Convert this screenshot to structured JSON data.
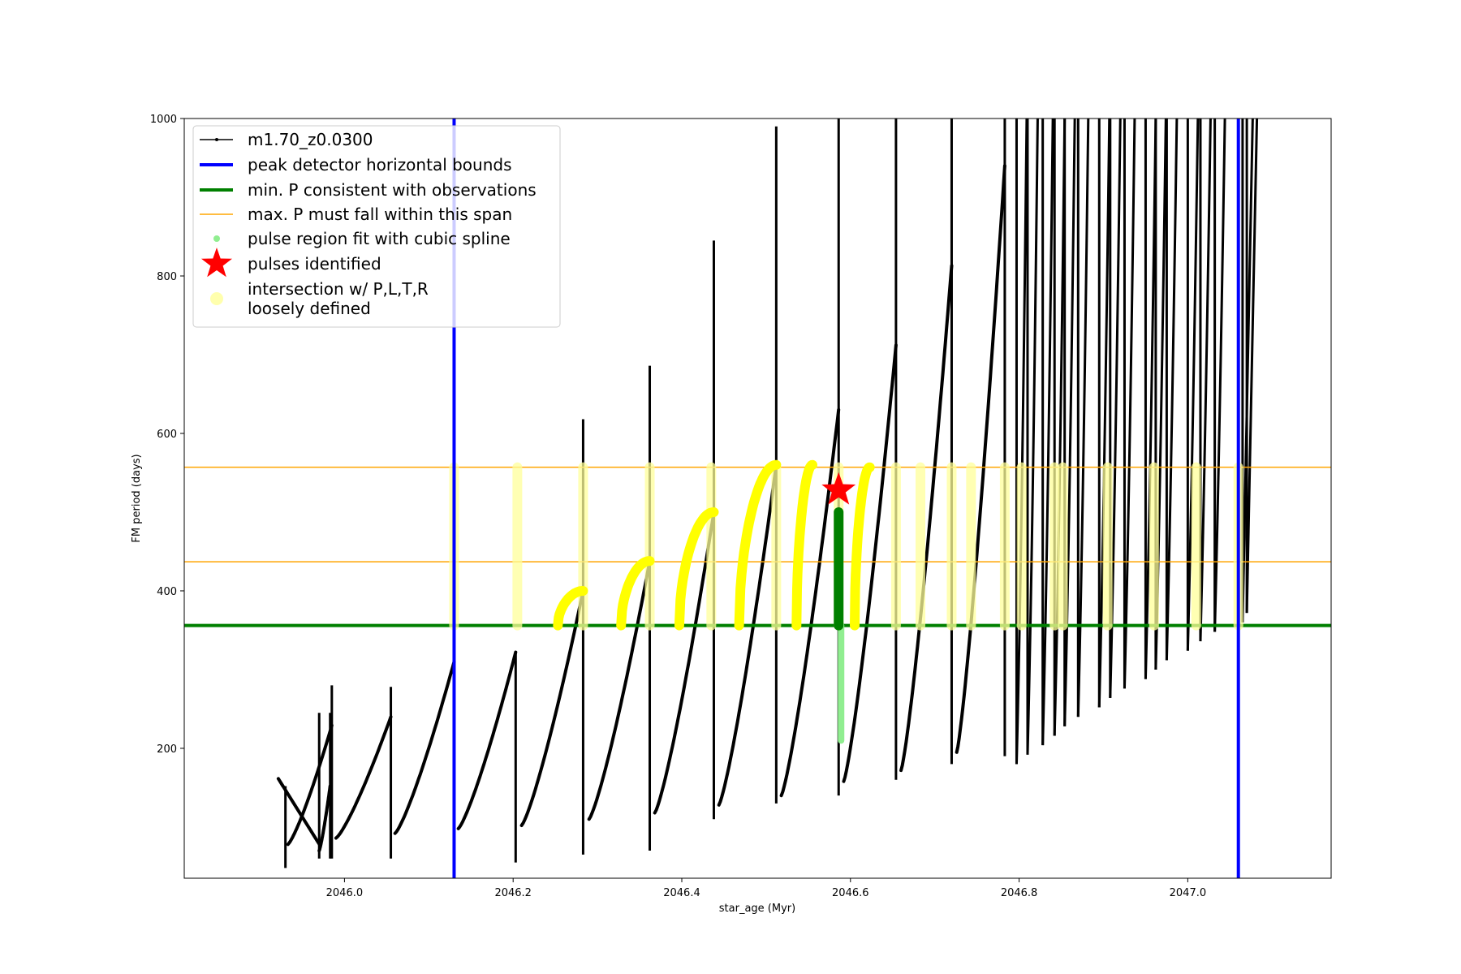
{
  "chart_data": {
    "type": "line",
    "xlabel": "star_age (Myr)",
    "ylabel": "FM period (days)",
    "xlim": [
      2045.81,
      2047.17
    ],
    "ylim": [
      35,
      1000
    ],
    "x_ticks": [
      2046.0,
      2046.2,
      2046.4,
      2046.6,
      2046.8,
      2047.0
    ],
    "x_tick_labels": [
      "2046.0",
      "2046.2",
      "2046.4",
      "2046.6",
      "2046.8",
      "2047.0"
    ],
    "y_ticks": [
      200,
      400,
      600,
      800,
      1000
    ],
    "y_tick_labels": [
      "200",
      "400",
      "600",
      "800",
      "1000"
    ],
    "grid": false,
    "legend_position": "top-left",
    "colors": {
      "model": "#000000",
      "bounds": "#0000ff",
      "min_p": "#008000",
      "max_p": "#ffa500",
      "spline": "#90ee90",
      "pulse": "#ff0000",
      "intersection": "#ffff00"
    },
    "legend": [
      {
        "label": "m1.70_z0.0300",
        "marker": "line-dot",
        "color": "#000000"
      },
      {
        "label": "peak detector horizontal bounds",
        "marker": "thick-line",
        "color": "#0000ff"
      },
      {
        "label": "min. P consistent with observations",
        "marker": "thick-line",
        "color": "#008000"
      },
      {
        "label": "max. P must fall within this span",
        "marker": "thin-line",
        "color": "#ffa500"
      },
      {
        "label": "pulse region fit with cubic spline",
        "marker": "dot",
        "color": "#90ee90"
      },
      {
        "label": "pulses identified",
        "marker": "star",
        "color": "#ff0000"
      },
      {
        "label": "intersection w/ P,L,T,R",
        "label2": "loosely defined",
        "marker": "circle",
        "color": "#ffff99"
      }
    ],
    "peak_detector_bounds_x": [
      2046.13,
      2047.06
    ],
    "min_period": 356,
    "max_period_span": [
      437,
      557
    ],
    "model_cycles": [
      {
        "x0": 2045.97,
        "x1": 2045.983,
        "rise_from": 180,
        "spike_to": 245,
        "min": 60,
        "trough": 70,
        "peak": 152,
        "xs": 2045.927,
        "spike_at_end": false
      },
      {
        "x0": 2045.933,
        "x1": 2045.985,
        "rise_from": 82,
        "spike_to": 280,
        "min": 60,
        "trough": 78,
        "peak": 229
      },
      {
        "x0": 2045.99,
        "x1": 2046.055,
        "rise_from": 80,
        "spike_to": 278,
        "min": 60,
        "trough": 86,
        "peak": 240
      },
      {
        "x0": 2046.06,
        "x1": 2046.13,
        "rise_from": 88,
        "spike_to": 310,
        "min": 60,
        "trough": 92,
        "peak": 310
      },
      {
        "x0": 2046.135,
        "x1": 2046.203,
        "rise_from": 92,
        "spike_to": 322,
        "min": 55,
        "trough": 98,
        "peak": 322
      },
      {
        "x0": 2046.21,
        "x1": 2046.283,
        "rise_from": 100,
        "spike_to": 618,
        "min": 65,
        "trough": 102,
        "peak": 400
      },
      {
        "x0": 2046.29,
        "x1": 2046.362,
        "rise_from": 106,
        "spike_to": 686,
        "min": 70,
        "trough": 110,
        "peak": 438
      },
      {
        "x0": 2046.368,
        "x1": 2046.438,
        "rise_from": 112,
        "spike_to": 845,
        "min": 110,
        "trough": 118,
        "peak": 500
      },
      {
        "x0": 2046.444,
        "x1": 2046.512,
        "rise_from": 125,
        "spike_to": 990,
        "min": 130,
        "trough": 128,
        "peak": 560
      },
      {
        "x0": 2046.518,
        "x1": 2046.586,
        "rise_from": 140,
        "spike_to": 1000,
        "min": 140,
        "trough": 140,
        "peak": 630
      },
      {
        "x0": 2046.592,
        "x1": 2046.654,
        "rise_from": 155,
        "spike_to": 1000,
        "min": 160,
        "trough": 158,
        "peak": 712
      },
      {
        "x0": 2046.66,
        "x1": 2046.72,
        "rise_from": 170,
        "spike_to": 1000,
        "min": 180,
        "trough": 172,
        "peak": 813
      },
      {
        "x0": 2046.726,
        "x1": 2046.783,
        "rise_from": 192,
        "spike_to": 1000,
        "min": 190,
        "trough": 195,
        "peak": 940
      }
    ],
    "late_spikes_x": [
      2046.797,
      2046.81,
      2046.828,
      2046.842,
      2046.854,
      2046.87,
      2046.895,
      2046.908,
      2046.925,
      2046.95,
      2046.962,
      2046.975,
      2047.0,
      2047.015,
      2047.032,
      2047.065,
      2047.07
    ],
    "intersection_arcs": [
      {
        "x0": 2046.253,
        "x1": 2046.283,
        "peak": 400
      },
      {
        "x0": 2046.328,
        "x1": 2046.362,
        "peak": 438
      },
      {
        "x0": 2046.397,
        "x1": 2046.438,
        "peak": 500
      },
      {
        "x0": 2046.468,
        "x1": 2046.512,
        "peak": 560
      },
      {
        "x0": 2046.536,
        "x1": 2046.555,
        "peak": 560
      },
      {
        "x0": 2046.605,
        "x1": 2046.623,
        "peak": 557
      }
    ],
    "intersection_columns_x": [
      2046.13,
      2046.205,
      2046.283,
      2046.362,
      2046.435,
      2046.512,
      2046.586,
      2046.654,
      2046.683,
      2046.72,
      2046.743,
      2046.783,
      2046.803,
      2046.842,
      2046.852,
      2046.905,
      2046.96,
      2047.01,
      2047.06
    ],
    "spline_region": {
      "x": 2046.586,
      "y_min": 210,
      "y_max": 500
    },
    "pulse_star": {
      "x": 2046.586,
      "y": 528
    }
  }
}
